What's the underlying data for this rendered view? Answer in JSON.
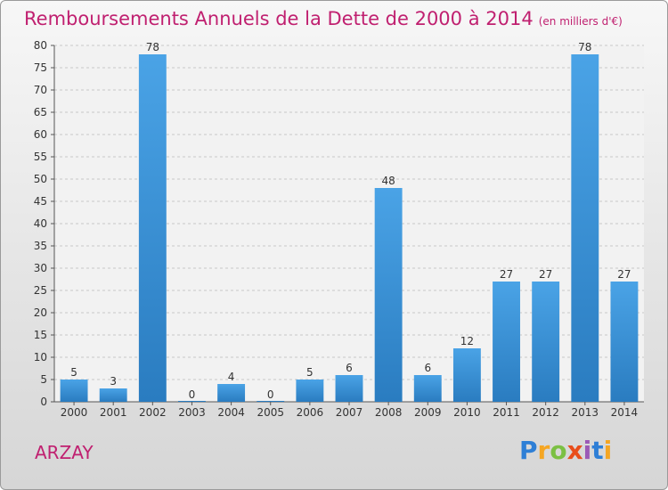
{
  "header": {
    "title": "Remboursements Annuels de la Dette de 2000 à 2014",
    "unit": "(en milliers d'€)"
  },
  "commune": "ARZAY",
  "logo": {
    "letters": [
      "P",
      "r",
      "o",
      "x",
      "i",
      "t",
      "i"
    ],
    "colors": [
      "#2e7fd6",
      "#f5a623",
      "#7bc043",
      "#e94e1b",
      "#9b59b6",
      "#2e7fd6",
      "#f5a623"
    ]
  },
  "colors": {
    "bar": "#4aa3e6",
    "bar_dark": "#2a7cc0",
    "title": "#c02070"
  },
  "chart_data": {
    "type": "bar",
    "title": "Remboursements Annuels de la Dette de 2000 à 2014",
    "subtitle": "(en milliers d'€)",
    "categories": [
      "2000",
      "2001",
      "2002",
      "2003",
      "2004",
      "2005",
      "2006",
      "2007",
      "2008",
      "2009",
      "2010",
      "2011",
      "2012",
      "2013",
      "2014"
    ],
    "values": [
      5,
      3,
      78,
      0,
      4,
      0,
      5,
      6,
      48,
      6,
      12,
      27,
      27,
      78,
      27
    ],
    "ylim": [
      0,
      80
    ],
    "yticks": [
      0,
      5,
      10,
      15,
      20,
      25,
      30,
      35,
      40,
      45,
      50,
      55,
      60,
      65,
      70,
      75,
      80
    ],
    "grid": true,
    "xlabel": "",
    "ylabel": ""
  }
}
